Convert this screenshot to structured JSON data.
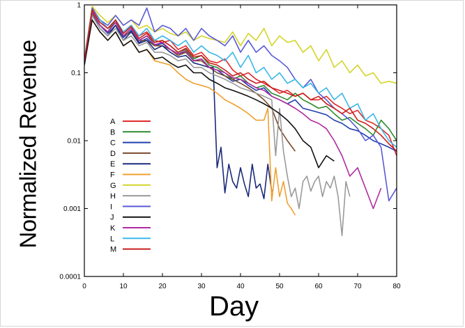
{
  "chart_data": {
    "type": "line",
    "title": "",
    "xlabel": "Day",
    "ylabel": "Normalized Revenue",
    "xscale": "linear",
    "yscale": "log",
    "xlim": [
      0,
      80
    ],
    "ylim": [
      0.0001,
      1
    ],
    "xticks": [
      0,
      10,
      20,
      30,
      40,
      50,
      60,
      70,
      80
    ],
    "xtick_labels": [
      "0",
      "10",
      "20",
      "30",
      "40",
      "50",
      "60",
      "70",
      "80"
    ],
    "yticks": [
      0.0001,
      0.001,
      0.01,
      0.1,
      1
    ],
    "ytick_labels": [
      "0.0001",
      "0.001",
      "0.01",
      "0.1",
      "1"
    ],
    "legend_position": "left-center",
    "series": [
      {
        "name": "A",
        "color": "#e02a2a",
        "x": [
          0,
          2,
          4,
          6,
          8,
          10,
          12,
          14,
          16,
          18,
          20,
          22,
          24,
          26,
          28,
          30,
          32,
          34,
          36,
          38,
          40,
          42,
          44,
          46,
          48,
          50,
          52,
          54,
          56,
          58,
          60,
          62,
          64,
          66,
          68,
          70,
          72,
          74,
          76,
          78,
          80
        ],
        "y": [
          0.15,
          0.9,
          0.6,
          0.45,
          0.55,
          0.4,
          0.5,
          0.35,
          0.4,
          0.3,
          0.28,
          0.3,
          0.22,
          0.25,
          0.18,
          0.2,
          0.15,
          0.14,
          0.16,
          0.11,
          0.09,
          0.1,
          0.08,
          0.07,
          0.06,
          0.05,
          0.055,
          0.045,
          0.05,
          0.04,
          0.04,
          0.045,
          0.035,
          0.03,
          0.025,
          0.028,
          0.02,
          0.018,
          0.015,
          0.012,
          0.006
        ]
      },
      {
        "name": "B",
        "color": "#2e8b2e",
        "x": [
          0,
          2,
          4,
          6,
          8,
          10,
          12,
          14,
          16,
          18,
          20,
          22,
          24,
          26,
          28,
          30,
          32,
          34,
          36,
          38,
          40,
          42,
          44,
          46,
          48,
          50,
          52,
          54,
          56,
          58,
          60,
          62,
          64,
          66,
          68,
          70,
          72,
          74,
          76,
          78,
          80
        ],
        "y": [
          0.15,
          0.8,
          0.5,
          0.4,
          0.6,
          0.35,
          0.45,
          0.3,
          0.35,
          0.28,
          0.3,
          0.25,
          0.2,
          0.22,
          0.16,
          0.18,
          0.13,
          0.12,
          0.1,
          0.08,
          0.09,
          0.07,
          0.06,
          0.065,
          0.05,
          0.045,
          0.04,
          0.05,
          0.04,
          0.035,
          0.03,
          0.032,
          0.025,
          0.02,
          0.022,
          0.018,
          0.015,
          0.012,
          0.02,
          0.015,
          0.01
        ]
      },
      {
        "name": "C",
        "color": "#1f3fae",
        "x": [
          0,
          2,
          4,
          6,
          8,
          10,
          12,
          14,
          16,
          18,
          20,
          22,
          24,
          26,
          28,
          30,
          32,
          34,
          36,
          38,
          40,
          42,
          44,
          46,
          48,
          50,
          52,
          54,
          56,
          58,
          60,
          62,
          64,
          66,
          68,
          70,
          72,
          74,
          76,
          78,
          80
        ],
        "y": [
          0.13,
          0.7,
          0.5,
          0.38,
          0.5,
          0.33,
          0.42,
          0.28,
          0.32,
          0.25,
          0.27,
          0.22,
          0.19,
          0.2,
          0.15,
          0.16,
          0.12,
          0.11,
          0.09,
          0.075,
          0.08,
          0.065,
          0.055,
          0.06,
          0.045,
          0.04,
          0.035,
          0.04,
          0.03,
          0.028,
          0.026,
          0.024,
          0.02,
          0.018,
          0.015,
          0.014,
          0.012,
          0.01,
          0.009,
          0.008,
          0.007
        ]
      },
      {
        "name": "D",
        "color": "#7a4a2a",
        "x": [
          0,
          2,
          4,
          6,
          8,
          10,
          12,
          14,
          16,
          18,
          20,
          22,
          24,
          26,
          28,
          30,
          32,
          34,
          36,
          38,
          40,
          42,
          44,
          46,
          48,
          50,
          52,
          54
        ],
        "y": [
          0.15,
          0.75,
          0.5,
          0.4,
          0.55,
          0.35,
          0.4,
          0.3,
          0.3,
          0.25,
          0.25,
          0.22,
          0.18,
          0.2,
          0.15,
          0.15,
          0.12,
          0.1,
          0.09,
          0.08,
          0.07,
          0.06,
          0.05,
          0.04,
          0.03,
          0.015,
          0.01,
          0.007
        ]
      },
      {
        "name": "E",
        "color": "#1a2a7a",
        "x": [
          0,
          2,
          4,
          6,
          8,
          10,
          12,
          14,
          16,
          18,
          20,
          22,
          24,
          26,
          28,
          30,
          32,
          33,
          34,
          35,
          36,
          37,
          38,
          39,
          40,
          41,
          42,
          43,
          44,
          45,
          46,
          47,
          48
        ],
        "y": [
          0.13,
          0.7,
          0.45,
          0.35,
          0.5,
          0.3,
          0.4,
          0.27,
          0.3,
          0.22,
          0.25,
          0.2,
          0.17,
          0.18,
          0.14,
          0.13,
          0.12,
          0.12,
          0.004,
          0.008,
          0.0017,
          0.0045,
          0.0025,
          0.002,
          0.004,
          0.0023,
          0.0015,
          0.0045,
          0.002,
          0.0023,
          0.0014,
          0.0045,
          0.0018
        ]
      },
      {
        "name": "F",
        "color": "#f0a030",
        "x": [
          0,
          2,
          4,
          6,
          8,
          10,
          12,
          14,
          16,
          18,
          20,
          22,
          24,
          26,
          28,
          30,
          32,
          34,
          36,
          38,
          40,
          42,
          44,
          46,
          47,
          48,
          49,
          50,
          51,
          52,
          53,
          54
        ],
        "y": [
          0.14,
          0.6,
          0.4,
          0.3,
          0.4,
          0.25,
          0.3,
          0.2,
          0.22,
          0.15,
          0.14,
          0.13,
          0.1,
          0.08,
          0.07,
          0.065,
          0.06,
          0.05,
          0.04,
          0.035,
          0.03,
          0.025,
          0.02,
          0.02,
          0.03,
          0.0013,
          0.004,
          0.0015,
          0.0025,
          0.0012,
          0.001,
          0.0008
        ]
      },
      {
        "name": "G",
        "color": "#d4d42a",
        "x": [
          0,
          2,
          4,
          6,
          8,
          10,
          12,
          14,
          16,
          18,
          20,
          22,
          24,
          26,
          28,
          30,
          32,
          34,
          36,
          38,
          40,
          42,
          44,
          46,
          48,
          50,
          52,
          54,
          56,
          58,
          60,
          62,
          64,
          66,
          68,
          70,
          72,
          74,
          76,
          78,
          80
        ],
        "y": [
          0.16,
          0.95,
          0.7,
          0.55,
          0.7,
          0.5,
          0.6,
          0.45,
          0.5,
          0.4,
          0.45,
          0.38,
          0.35,
          0.4,
          0.3,
          0.35,
          0.32,
          0.3,
          0.28,
          0.4,
          0.25,
          0.38,
          0.3,
          0.45,
          0.25,
          0.35,
          0.28,
          0.3,
          0.2,
          0.25,
          0.15,
          0.22,
          0.12,
          0.15,
          0.1,
          0.13,
          0.09,
          0.1,
          0.07,
          0.075,
          0.07
        ]
      },
      {
        "name": "H",
        "color": "#9a9a9a",
        "x": [
          0,
          2,
          4,
          6,
          8,
          10,
          12,
          14,
          16,
          18,
          20,
          22,
          24,
          26,
          28,
          30,
          32,
          34,
          36,
          38,
          40,
          42,
          44,
          46,
          48,
          49,
          50,
          51,
          52,
          53,
          54,
          55,
          56,
          57,
          58,
          59,
          60,
          61,
          62,
          63,
          64,
          65,
          66,
          67,
          68
        ],
        "y": [
          0.14,
          0.7,
          0.45,
          0.35,
          0.45,
          0.3,
          0.35,
          0.25,
          0.28,
          0.2,
          0.2,
          0.18,
          0.15,
          0.16,
          0.12,
          0.12,
          0.1,
          0.09,
          0.08,
          0.07,
          0.06,
          0.055,
          0.05,
          0.045,
          0.04,
          0.006,
          0.03,
          0.007,
          0.003,
          0.0015,
          0.002,
          0.001,
          0.0025,
          0.003,
          0.0018,
          0.0025,
          0.003,
          0.0015,
          0.0025,
          0.002,
          0.003,
          0.0015,
          0.0004,
          0.0025,
          0.0015
        ]
      },
      {
        "name": "I",
        "color": "#5a5ad8",
        "x": [
          0,
          2,
          4,
          6,
          8,
          10,
          12,
          14,
          16,
          18,
          20,
          22,
          24,
          26,
          28,
          30,
          32,
          34,
          36,
          38,
          40,
          42,
          44,
          46,
          48,
          50,
          52,
          54,
          56,
          58,
          60,
          62,
          64,
          66,
          68,
          70,
          72,
          74,
          76,
          78,
          80
        ],
        "y": [
          0.15,
          0.9,
          0.6,
          0.5,
          0.7,
          0.5,
          0.6,
          0.5,
          0.9,
          0.4,
          0.5,
          0.45,
          0.35,
          0.45,
          0.3,
          0.45,
          0.35,
          0.3,
          0.25,
          0.35,
          0.2,
          0.3,
          0.2,
          0.25,
          0.18,
          0.15,
          0.12,
          0.08,
          0.06,
          0.08,
          0.05,
          0.04,
          0.03,
          0.025,
          0.02,
          0.015,
          0.01,
          0.012,
          0.008,
          0.0013,
          0.002
        ]
      },
      {
        "name": "J",
        "color": "#111111",
        "x": [
          0,
          2,
          4,
          6,
          8,
          10,
          12,
          14,
          16,
          18,
          20,
          22,
          24,
          26,
          28,
          30,
          32,
          34,
          36,
          38,
          40,
          42,
          44,
          46,
          48,
          50,
          52,
          54,
          56,
          58,
          60,
          62,
          64
        ],
        "y": [
          0.13,
          0.6,
          0.4,
          0.3,
          0.4,
          0.25,
          0.3,
          0.2,
          0.22,
          0.16,
          0.17,
          0.14,
          0.12,
          0.13,
          0.1,
          0.1,
          0.08,
          0.07,
          0.06,
          0.055,
          0.05,
          0.045,
          0.04,
          0.035,
          0.03,
          0.025,
          0.02,
          0.015,
          0.01,
          0.008,
          0.004,
          0.006,
          0.005
        ]
      },
      {
        "name": "K",
        "color": "#b02aa0",
        "x": [
          0,
          2,
          4,
          6,
          8,
          10,
          12,
          14,
          16,
          18,
          20,
          22,
          24,
          26,
          28,
          30,
          32,
          34,
          36,
          38,
          40,
          42,
          44,
          46,
          48,
          50,
          52,
          54,
          56,
          58,
          60,
          62,
          64,
          66,
          68,
          70,
          72,
          74,
          76
        ],
        "y": [
          0.15,
          0.8,
          0.5,
          0.4,
          0.55,
          0.35,
          0.45,
          0.3,
          0.35,
          0.26,
          0.28,
          0.22,
          0.19,
          0.21,
          0.15,
          0.16,
          0.12,
          0.11,
          0.1,
          0.085,
          0.08,
          0.07,
          0.06,
          0.055,
          0.045,
          0.04,
          0.035,
          0.03,
          0.025,
          0.02,
          0.018,
          0.015,
          0.01,
          0.006,
          0.003,
          0.004,
          0.002,
          0.001,
          0.002
        ]
      },
      {
        "name": "L",
        "color": "#3ab8e8",
        "x": [
          0,
          2,
          4,
          6,
          8,
          10,
          12,
          14,
          16,
          18,
          20,
          22,
          24,
          26,
          28,
          30,
          32,
          34,
          36,
          38,
          40,
          42,
          44,
          46,
          48,
          50,
          52,
          54,
          56,
          58,
          60,
          62,
          64,
          66,
          68,
          70,
          72,
          74,
          76,
          78,
          80
        ],
        "y": [
          0.16,
          0.85,
          0.6,
          0.45,
          0.6,
          0.4,
          0.5,
          0.35,
          0.45,
          0.3,
          0.35,
          0.3,
          0.25,
          0.3,
          0.2,
          0.25,
          0.2,
          0.18,
          0.15,
          0.2,
          0.12,
          0.18,
          0.1,
          0.12,
          0.08,
          0.1,
          0.07,
          0.08,
          0.06,
          0.07,
          0.05,
          0.06,
          0.04,
          0.05,
          0.03,
          0.035,
          0.02,
          0.025,
          0.015,
          0.01,
          0.008
        ]
      },
      {
        "name": "M",
        "color": "#c81e1e",
        "x": [
          0,
          2,
          4,
          6,
          8,
          10,
          12,
          14,
          16,
          18,
          20,
          22,
          24,
          26,
          28,
          30,
          32,
          34,
          36,
          38,
          40,
          42,
          44,
          46,
          48,
          50,
          52,
          54,
          56,
          58,
          60,
          62,
          64,
          66,
          68,
          70,
          72,
          74,
          76,
          78,
          80
        ],
        "y": [
          0.15,
          0.85,
          0.55,
          0.45,
          0.6,
          0.38,
          0.48,
          0.32,
          0.38,
          0.28,
          0.3,
          0.25,
          0.2,
          0.23,
          0.17,
          0.18,
          0.14,
          0.13,
          0.11,
          0.09,
          0.1,
          0.08,
          0.07,
          0.075,
          0.06,
          0.055,
          0.05,
          0.045,
          0.05,
          0.04,
          0.045,
          0.035,
          0.03,
          0.025,
          0.03,
          0.02,
          0.018,
          0.015,
          0.012,
          0.009,
          0.007
        ]
      }
    ]
  }
}
